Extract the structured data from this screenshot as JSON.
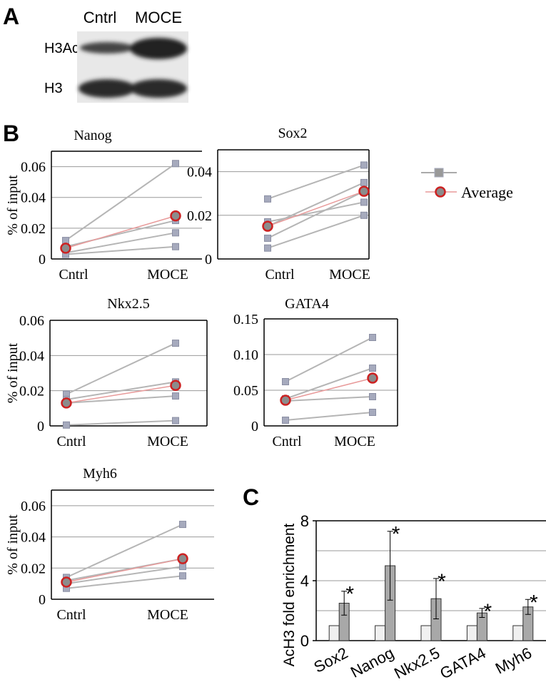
{
  "panel_a": {
    "label": "A",
    "lanes": [
      "Cntrl",
      "MOCE"
    ],
    "rows": [
      "H3Ac",
      "H3"
    ]
  },
  "panel_b": {
    "label": "B",
    "legend_label": "Average"
  },
  "panel_c": {
    "label": "C"
  },
  "chart_data": [
    {
      "type": "line",
      "title": "Nanog",
      "ylabel": "% of input",
      "categories": [
        "Cntrl",
        "MOCE"
      ],
      "ylim": [
        0,
        0.07
      ],
      "yticks": [
        0,
        0.02,
        0.04,
        0.06
      ],
      "series": [
        {
          "color": "#a6aabd",
          "values": [
            0.012,
            0.062
          ]
        },
        {
          "color": "#a6aabd",
          "values": [
            0.008,
            0.025
          ]
        },
        {
          "color": "#a6aabd",
          "values": [
            0.004,
            0.017
          ]
        },
        {
          "color": "#a6aabd",
          "values": [
            0.003,
            0.008
          ]
        }
      ],
      "average": {
        "color": "#cc2222",
        "values": [
          0.007,
          0.028
        ]
      }
    },
    {
      "type": "line",
      "title": "Sox2",
      "categories": [
        "Cntrl",
        "MOCE"
      ],
      "ylim": [
        0,
        0.05
      ],
      "yticks": [
        0,
        0.02,
        0.04
      ],
      "series": [
        {
          "color": "#a6aabd",
          "values": [
            0.0275,
            0.043
          ]
        },
        {
          "color": "#a6aabd",
          "values": [
            0.017,
            0.026
          ]
        },
        {
          "color": "#a6aabd",
          "values": [
            0.015,
            0.035
          ]
        },
        {
          "color": "#a6aabd",
          "values": [
            0.0095,
            0.031
          ]
        },
        {
          "color": "#a6aabd",
          "values": [
            0.005,
            0.02
          ]
        }
      ],
      "average": {
        "color": "#cc2222",
        "values": [
          0.015,
          0.031
        ]
      }
    },
    {
      "type": "line",
      "title": "Nkx2.5",
      "ylabel": "% of input",
      "categories": [
        "Cntrl",
        "MOCE"
      ],
      "ylim": [
        0,
        0.06
      ],
      "yticks": [
        0,
        0.02,
        0.04,
        0.06
      ],
      "series": [
        {
          "color": "#a6aabd",
          "values": [
            0.018,
            0.047
          ]
        },
        {
          "color": "#a6aabd",
          "values": [
            0.015,
            0.025
          ]
        },
        {
          "color": "#a6aabd",
          "values": [
            0.013,
            0.017
          ]
        },
        {
          "color": "#a6aabd",
          "values": [
            0.0005,
            0.003
          ]
        }
      ],
      "average": {
        "color": "#cc2222",
        "values": [
          0.013,
          0.023
        ]
      }
    },
    {
      "type": "line",
      "title": "GATA4",
      "categories": [
        "Cntrl",
        "MOCE"
      ],
      "ylim": [
        0,
        0.15
      ],
      "yticks": [
        0,
        0.05,
        {
          "value": 0.1,
          "label": "0.10"
        },
        0.15
      ],
      "series": [
        {
          "color": "#a6aabd",
          "values": [
            0.062,
            0.124
          ]
        },
        {
          "color": "#a6aabd",
          "values": [
            0.038,
            0.081
          ]
        },
        {
          "color": "#a6aabd",
          "values": [
            0.035,
            0.041
          ]
        },
        {
          "color": "#a6aabd",
          "values": [
            0.008,
            0.019
          ]
        }
      ],
      "average": {
        "color": "#cc2222",
        "values": [
          0.036,
          0.067
        ]
      }
    },
    {
      "type": "line",
      "title": "Myh6",
      "ylabel": "% of input",
      "categories": [
        "Cntrl",
        "MOCE"
      ],
      "ylim": [
        0,
        0.07
      ],
      "yticks": [
        0,
        0.02,
        0.04,
        0.06
      ],
      "series": [
        {
          "color": "#a6aabd",
          "values": [
            0.014,
            0.048
          ]
        },
        {
          "color": "#a6aabd",
          "values": [
            0.012,
            0.026
          ]
        },
        {
          "color": "#a6aabd",
          "values": [
            0.01,
            0.021
          ]
        },
        {
          "color": "#a6aabd",
          "values": [
            0.007,
            0.015
          ]
        }
      ],
      "average": {
        "color": "#cc2222",
        "values": [
          0.011,
          0.026
        ]
      }
    },
    {
      "type": "bar",
      "ylabel": "AcH3 fold enrichment",
      "categories": [
        "Sox2",
        "Nanog",
        "Nkx2.5",
        "GATA4",
        "Myh6"
      ],
      "ylim": [
        0,
        8
      ],
      "yticks": [
        0,
        4,
        8
      ],
      "ygrid": [
        2,
        4,
        6
      ],
      "series": [
        {
          "color": "#f0f0f0",
          "values": [
            1,
            1,
            1,
            1,
            1
          ]
        },
        {
          "color": "#a8a8a8",
          "values": [
            2.5,
            5.0,
            2.8,
            1.85,
            2.25
          ],
          "errors": [
            0.8,
            2.3,
            1.35,
            0.3,
            0.5
          ]
        }
      ],
      "annotations": [
        "*",
        "*",
        "*",
        "*",
        "*"
      ]
    }
  ]
}
